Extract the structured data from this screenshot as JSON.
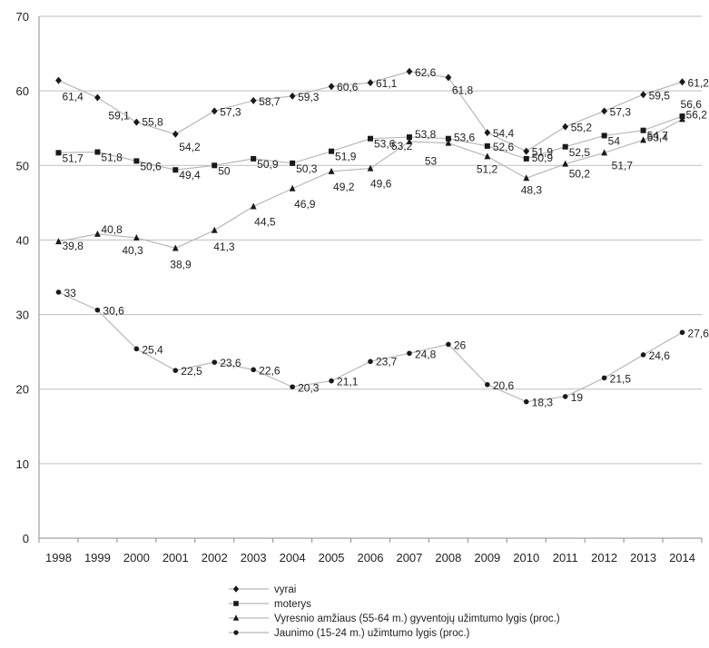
{
  "chart_data": {
    "type": "line",
    "title": "",
    "xlabel": "",
    "ylabel": "",
    "ylim": [
      0,
      70
    ],
    "yticks": [
      0,
      10,
      20,
      30,
      40,
      50,
      60,
      70
    ],
    "grid": true,
    "legend_position": "bottom",
    "x": [
      "1998",
      "1999",
      "2000",
      "2001",
      "2002",
      "2003",
      "2004",
      "2005",
      "2006",
      "2007",
      "2008",
      "2009",
      "2010",
      "2011",
      "2012",
      "2013",
      "2014"
    ],
    "series": [
      {
        "name": "vyrai",
        "marker": "diamond",
        "values": [
          61.4,
          59.1,
          55.8,
          54.2,
          57.3,
          58.7,
          59.3,
          60.6,
          61.1,
          62.6,
          61.8,
          54.4,
          51.9,
          55.2,
          57.3,
          59.5,
          61.2
        ],
        "labels": [
          "61,4",
          "59,1",
          "55,8",
          "54,2",
          "57,3",
          "58,7",
          "59,3",
          "60,6",
          "61,1",
          "62,6",
          "61,8",
          "54,4",
          "51,9",
          "55,2",
          "57,3",
          "59,5",
          "61,2"
        ]
      },
      {
        "name": "moterys",
        "marker": "square",
        "values": [
          51.7,
          51.8,
          50.6,
          49.4,
          50.0,
          50.9,
          50.3,
          51.9,
          53.6,
          53.8,
          53.6,
          52.6,
          50.9,
          52.5,
          54.0,
          54.7,
          56.6
        ],
        "labels": [
          "51,7",
          "51,8",
          "50,6",
          "49,4",
          "50",
          "50,9",
          "50,3",
          "51,9",
          "53,6",
          "53,8",
          "53,6",
          "52,6",
          "50,9",
          "52,5",
          "54",
          "54,7",
          "56,6"
        ]
      },
      {
        "name": "Vyresnio amžiaus (55-64 m.) gyventojų užimtumo lygis (proc.)",
        "marker": "triangle",
        "values": [
          39.8,
          40.8,
          40.3,
          38.9,
          41.3,
          44.5,
          46.9,
          49.2,
          49.6,
          53.2,
          53.0,
          51.2,
          48.3,
          50.2,
          51.7,
          53.4,
          56.2
        ],
        "labels": [
          "39,8",
          "40,8",
          "40,3",
          "38,9",
          "41,3",
          "44,5",
          "46,9",
          "49,2",
          "49,6",
          "53,2",
          "53",
          "51,2",
          "48,3",
          "50,2",
          "51,7",
          "53,4",
          "56,2"
        ]
      },
      {
        "name": "Jaunimo (15-24 m.) užimtumo lygis (proc.)",
        "marker": "circle",
        "values": [
          33.0,
          30.6,
          25.4,
          22.5,
          23.6,
          22.6,
          20.3,
          21.1,
          23.7,
          24.8,
          26.0,
          20.6,
          18.3,
          19.0,
          21.5,
          24.6,
          27.6
        ],
        "labels": [
          "33",
          "30,6",
          "25,4",
          "22,5",
          "23,6",
          "22,6",
          "20,3",
          "21,1",
          "23,7",
          "24,8",
          "26",
          "20,6",
          "18,3",
          "19",
          "21,5",
          "24,6",
          "27,6"
        ]
      }
    ]
  },
  "legend": {
    "items": [
      {
        "label": "vyrai",
        "marker": "diamond"
      },
      {
        "label": "moterys",
        "marker": "square"
      },
      {
        "label": "Vyresnio amžiaus (55-64 m.) gyventojų užimtumo lygis (proc.)",
        "marker": "triangle"
      },
      {
        "label": "Jaunimo (15-24 m.) užimtumo lygis (proc.)",
        "marker": "circle"
      }
    ]
  },
  "style": {
    "grid_color": "#bfbfbf",
    "line_color": "#b8b8b8",
    "marker_color": "#1a1a1a",
    "text_color": "#222222"
  }
}
